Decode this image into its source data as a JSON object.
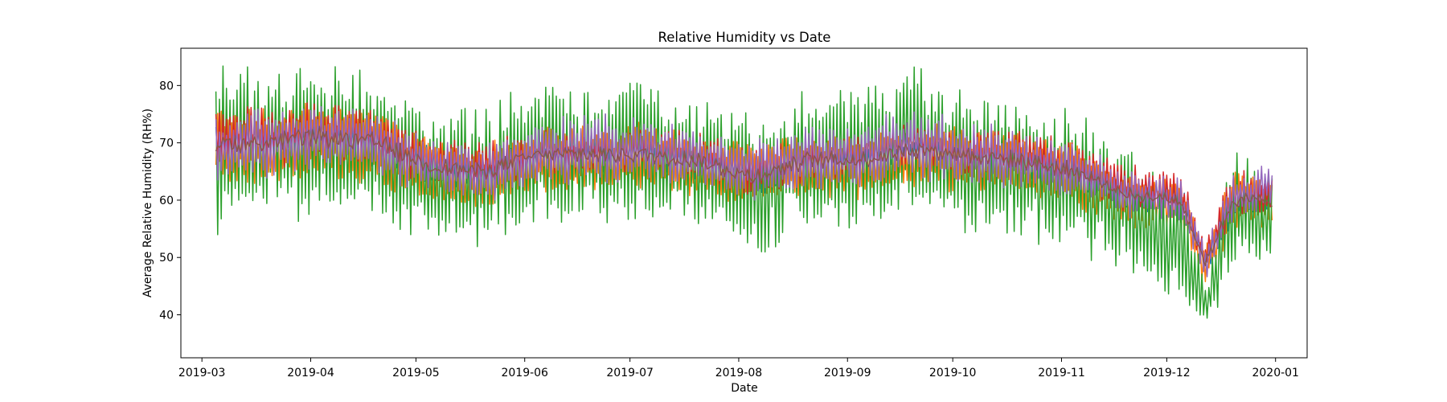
{
  "chart_data": {
    "type": "line",
    "title": "Relative Humidity vs Date",
    "xlabel": "Date",
    "ylabel": "Average Relative Humidity (RH%)",
    "x_range": [
      "2019-02-23",
      "2020-01-10"
    ],
    "ylim": [
      32.5,
      86.5
    ],
    "grid": false,
    "legend": "none",
    "x_ticks": [
      "2019-03",
      "2019-04",
      "2019-05",
      "2019-06",
      "2019-07",
      "2019-08",
      "2019-09",
      "2019-10",
      "2019-11",
      "2019-12",
      "2020-01"
    ],
    "y_ticks": [
      40,
      50,
      60,
      70,
      80
    ],
    "series": [
      {
        "color": "#1f77b4",
        "x": [
          "2019-03-05",
          "2019-03-20",
          "2019-04-05",
          "2019-04-20",
          "2019-05-05",
          "2019-05-20",
          "2019-06-05",
          "2019-06-20",
          "2019-07-05",
          "2019-07-20",
          "2019-08-05",
          "2019-08-20",
          "2019-09-05",
          "2019-09-20",
          "2019-10-05",
          "2019-10-20",
          "2019-11-05",
          "2019-11-20",
          "2019-12-05",
          "2019-12-12",
          "2019-12-20",
          "2019-12-31"
        ],
        "values": [
          70,
          70,
          72,
          70,
          66,
          64,
          68,
          68,
          68,
          67,
          64,
          67,
          67,
          69,
          68,
          68,
          65,
          61,
          60,
          49,
          60,
          60
        ],
        "spread": [
          6,
          6,
          6,
          6,
          5,
          5,
          5,
          5,
          5,
          5,
          5,
          5,
          5,
          5,
          5,
          5,
          5,
          4,
          4,
          3,
          5,
          4
        ]
      },
      {
        "color": "#ff7f0e",
        "x": [
          "2019-03-05",
          "2019-03-20",
          "2019-04-05",
          "2019-04-20",
          "2019-05-05",
          "2019-05-20",
          "2019-06-05",
          "2019-06-20",
          "2019-07-05",
          "2019-07-20",
          "2019-08-05",
          "2019-08-20",
          "2019-09-05",
          "2019-09-20",
          "2019-10-05",
          "2019-10-20",
          "2019-11-05",
          "2019-11-20",
          "2019-12-05",
          "2019-12-12",
          "2019-12-20",
          "2019-12-31"
        ],
        "values": [
          70,
          69,
          71,
          69,
          65,
          64,
          67,
          67,
          68,
          66,
          64,
          66,
          66,
          68,
          67,
          66,
          64,
          60,
          59,
          48,
          60,
          59
        ],
        "spread": [
          6,
          6,
          6,
          6,
          5,
          5,
          5,
          5,
          5,
          5,
          5,
          5,
          5,
          5,
          5,
          5,
          5,
          4,
          4,
          3,
          5,
          4
        ]
      },
      {
        "color": "#2ca02c",
        "x": [
          "2019-03-05",
          "2019-03-20",
          "2019-04-05",
          "2019-04-20",
          "2019-05-05",
          "2019-05-20",
          "2019-06-05",
          "2019-06-20",
          "2019-07-05",
          "2019-07-20",
          "2019-08-05",
          "2019-08-20",
          "2019-09-05",
          "2019-09-20",
          "2019-10-05",
          "2019-10-20",
          "2019-11-05",
          "2019-11-20",
          "2019-12-05",
          "2019-12-12",
          "2019-12-20",
          "2019-12-31"
        ],
        "values": [
          68,
          70,
          70,
          69,
          64,
          64,
          68,
          68,
          70,
          66,
          63,
          67,
          68,
          71,
          67,
          65,
          63,
          58,
          52,
          41,
          58,
          56
        ],
        "spread": [
          12,
          12,
          11,
          11,
          10,
          10,
          11,
          11,
          11,
          10,
          10,
          11,
          11,
          11,
          11,
          10,
          10,
          9,
          9,
          4,
          9,
          7
        ]
      },
      {
        "color": "#d62728",
        "x": [
          "2019-03-05",
          "2019-03-20",
          "2019-04-05",
          "2019-04-20",
          "2019-05-05",
          "2019-05-20",
          "2019-06-05",
          "2019-06-20",
          "2019-07-05",
          "2019-07-20",
          "2019-08-05",
          "2019-08-20",
          "2019-09-05",
          "2019-09-20",
          "2019-10-05",
          "2019-10-20",
          "2019-11-05",
          "2019-11-20",
          "2019-12-05",
          "2019-12-12",
          "2019-12-20",
          "2019-12-31"
        ],
        "values": [
          71,
          71,
          72,
          71,
          67,
          66,
          68,
          68,
          69,
          68,
          65,
          67,
          68,
          70,
          68,
          68,
          66,
          62,
          61,
          50,
          61,
          61
        ],
        "spread": [
          5,
          5,
          5,
          5,
          4,
          4,
          4,
          4,
          4,
          4,
          4,
          4,
          4,
          4,
          4,
          4,
          4,
          4,
          4,
          3,
          4,
          3
        ]
      },
      {
        "color": "#9467bd",
        "x": [
          "2019-03-05",
          "2019-03-20",
          "2019-04-05",
          "2019-04-20",
          "2019-05-05",
          "2019-05-20",
          "2019-06-05",
          "2019-06-20",
          "2019-07-05",
          "2019-07-20",
          "2019-08-05",
          "2019-08-20",
          "2019-09-05",
          "2019-09-20",
          "2019-10-05",
          "2019-10-20",
          "2019-11-05",
          "2019-11-20",
          "2019-12-05",
          "2019-12-12",
          "2019-12-20",
          "2019-12-31"
        ],
        "values": [
          69,
          70,
          71,
          70,
          66,
          65,
          68,
          69,
          69,
          67,
          65,
          68,
          68,
          70,
          68,
          67,
          65,
          61,
          60,
          49,
          61,
          62
        ],
        "spread": [
          6,
          6,
          6,
          6,
          5,
          5,
          6,
          6,
          6,
          5,
          5,
          6,
          6,
          6,
          6,
          5,
          5,
          4,
          4,
          3,
          4,
          4
        ]
      },
      {
        "color": "#8c564b",
        "x": [
          "2019-03-05",
          "2019-03-20",
          "2019-04-05",
          "2019-04-20",
          "2019-05-05",
          "2019-05-20",
          "2019-06-05",
          "2019-06-20",
          "2019-07-05",
          "2019-07-20",
          "2019-08-05",
          "2019-08-20",
          "2019-09-05",
          "2019-09-20",
          "2019-10-05",
          "2019-10-20",
          "2019-11-05",
          "2019-11-20",
          "2019-12-05",
          "2019-12-12",
          "2019-12-20",
          "2019-12-31"
        ],
        "values": [
          70,
          70,
          71,
          70,
          66,
          65,
          68,
          68,
          68,
          67,
          64,
          67,
          67,
          69,
          68,
          67,
          65,
          61,
          60,
          49,
          60,
          60
        ],
        "spread": [
          6,
          6,
          6,
          6,
          5,
          5,
          5,
          5,
          5,
          5,
          5,
          5,
          5,
          5,
          5,
          5,
          5,
          4,
          4,
          3,
          4,
          4
        ]
      }
    ]
  }
}
